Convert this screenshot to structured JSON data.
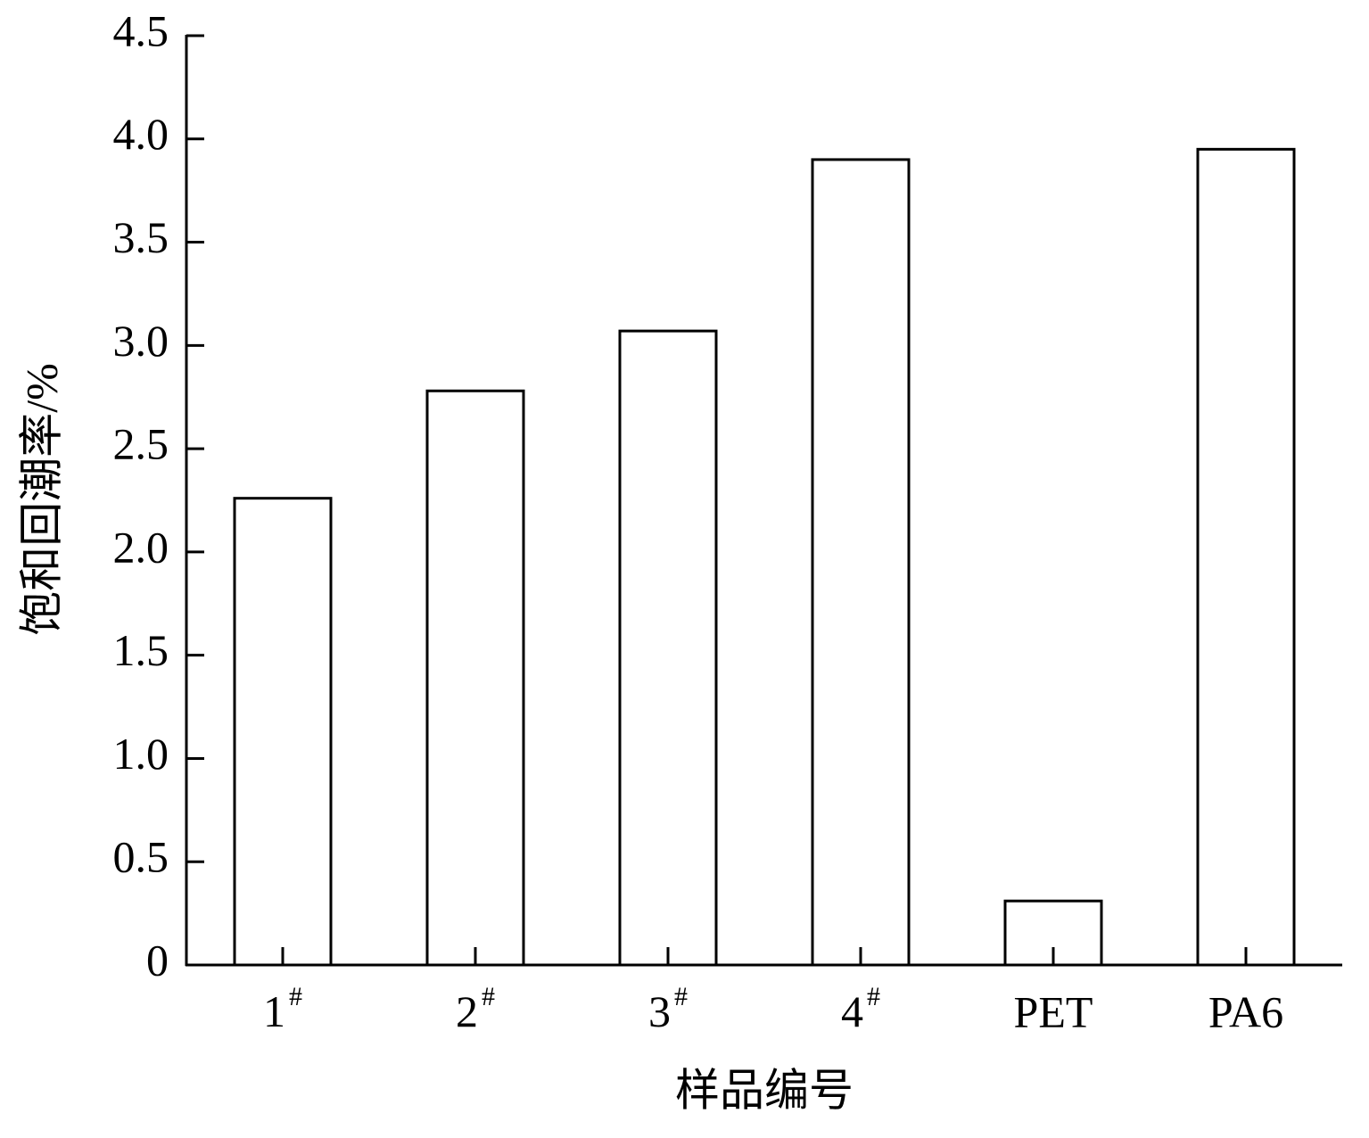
{
  "chart_data": {
    "type": "bar",
    "x_label": "样品编号",
    "y_label": "饱和回潮率/%",
    "categories": [
      "1#",
      "2#",
      "3#",
      "4#",
      "PET",
      "PA6"
    ],
    "values": [
      2.26,
      2.78,
      3.07,
      3.9,
      0.31,
      3.95
    ],
    "color": "#ffffff",
    "edge_color": "#000000",
    "ylim": [
      0,
      4.5
    ],
    "yticks": [
      0,
      0.5,
      {
        "value": 1,
        "label": "1.0"
      },
      1.5,
      {
        "value": 2,
        "label": "2.0"
      },
      2.5,
      {
        "value": 3,
        "label": "3.0"
      },
      3.5,
      {
        "value": 4,
        "label": "4.0"
      },
      4.5
    ],
    "grid": false
  }
}
